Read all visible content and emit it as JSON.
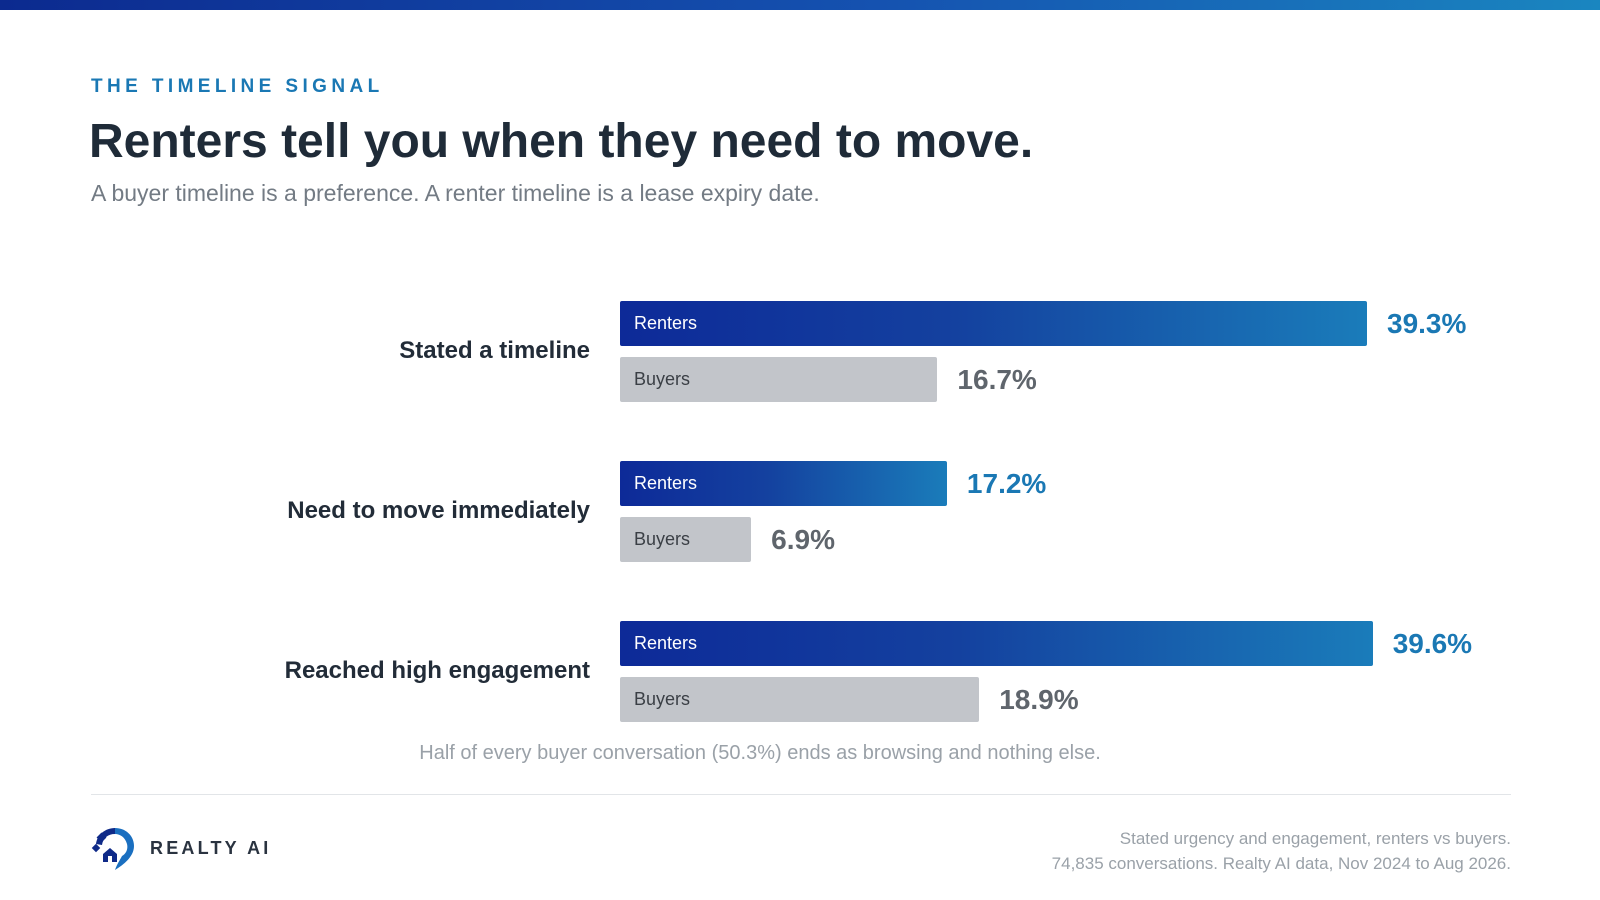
{
  "header": {
    "eyebrow": "THE TIMELINE SIGNAL",
    "title": "Renters tell you when they need to move.",
    "subtitle": "A buyer timeline is a preference. A renter timeline is a lease expiry date."
  },
  "colors": {
    "accent": "#1a78b4",
    "renters_start": "#0d2a98",
    "renters_end": "#1a7cba",
    "buyers": "#c2c5ca"
  },
  "chart_data": {
    "type": "bar",
    "orientation": "horizontal",
    "categories": [
      "Stated a timeline",
      "Need to move immediately",
      "Reached high engagement"
    ],
    "series": [
      {
        "name": "Renters",
        "values": [
          39.3,
          17.2,
          39.6
        ],
        "labels": [
          "39.3%",
          "17.2%",
          "39.6%"
        ]
      },
      {
        "name": "Buyers",
        "values": [
          16.7,
          6.9,
          18.9
        ],
        "labels": [
          "16.7%",
          "6.9%",
          "18.9%"
        ]
      }
    ],
    "xlim": [
      0,
      40
    ],
    "unit": "%",
    "grid": false,
    "legend": "none"
  },
  "note": "Half of every buyer conversation (50.3%) ends as browsing and nothing else.",
  "footer": {
    "logo_icon": "house-pin-icon",
    "brand": "REALTY AI",
    "source_line1": "Stated urgency and engagement, renters vs buyers.",
    "source_line2": "74,835 conversations. Realty AI data, Nov 2024 to Aug 2026."
  }
}
